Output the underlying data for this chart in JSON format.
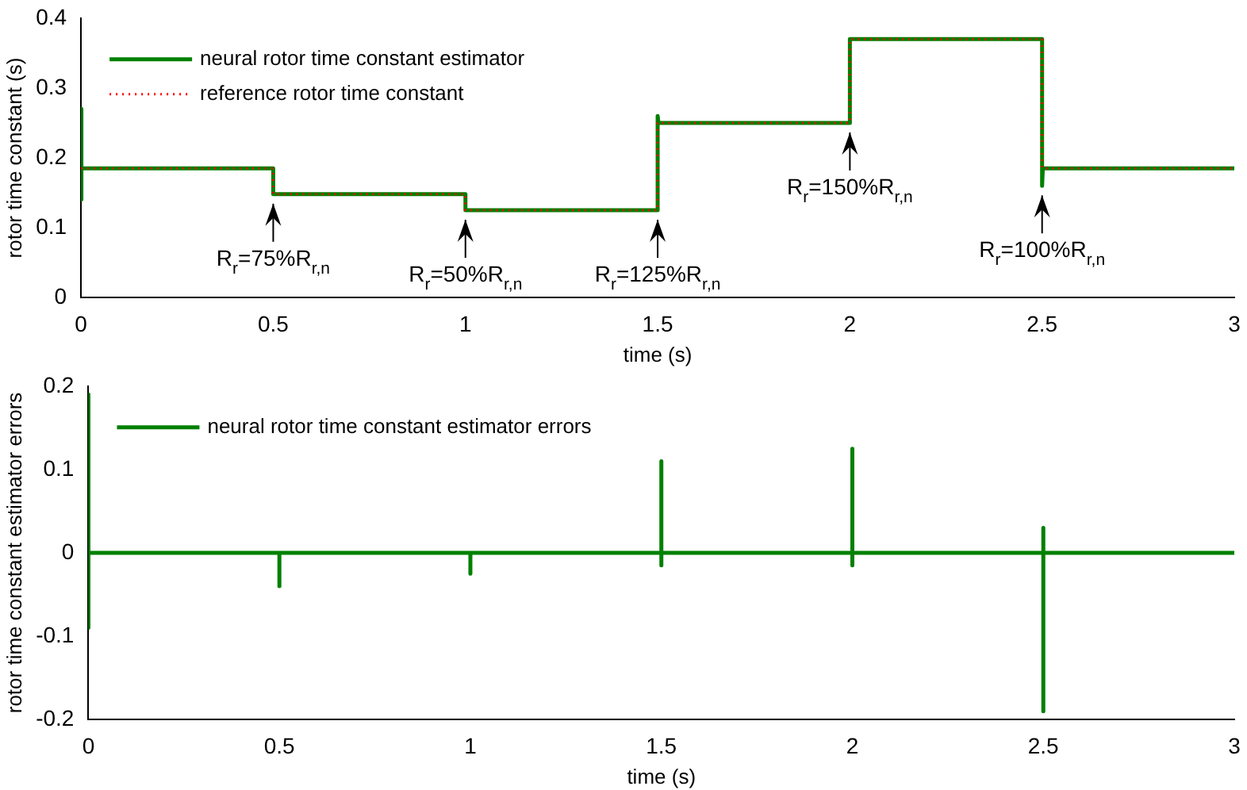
{
  "chart_data": [
    {
      "type": "line",
      "xlabel": "time (s)",
      "ylabel": "rotor time constant (s)",
      "xlim": [
        0,
        3
      ],
      "xticks": [
        0,
        0.5,
        1,
        1.5,
        2,
        2.5,
        3
      ],
      "ylim": [
        0,
        0.4
      ],
      "yticks": [
        0,
        0.1,
        0.2,
        0.3,
        0.4
      ],
      "grid": false,
      "legend": "top left",
      "marker": "none",
      "series": [
        {
          "name": "neural rotor time constant estimator",
          "color": "#008000",
          "line_style": "solid",
          "x": [
            0,
            0,
            0.002,
            0.5,
            0.5,
            1,
            1,
            1.5,
            1.5,
            1.502,
            2,
            2,
            2.5,
            2.5,
            2.502,
            3
          ],
          "values": [
            0.27,
            0.14,
            0.185,
            0.185,
            0.148,
            0.148,
            0.125,
            0.125,
            0.26,
            0.25,
            0.25,
            0.37,
            0.37,
            0.16,
            0.185,
            0.185
          ]
        },
        {
          "name": "reference rotor time constant",
          "color": "#ff0000",
          "line_style": "dotted",
          "x": [
            0,
            0.5,
            0.5,
            1,
            1,
            1.5,
            1.5,
            2,
            2,
            2.5,
            2.5,
            3
          ],
          "values": [
            0.185,
            0.185,
            0.148,
            0.148,
            0.125,
            0.125,
            0.25,
            0.25,
            0.37,
            0.37,
            0.185,
            0.185
          ]
        }
      ],
      "annotations": [
        {
          "text": "R$_{r}$=75%R$_{r,n}$",
          "x": 0.5,
          "y": 0.148
        },
        {
          "text": "R$_{r}$=50%R$_{r,n}$",
          "x": 1,
          "y": 0.125
        },
        {
          "text": "R$_{r}$=125%R$_{r,n}$",
          "x": 1.5,
          "y": 0.125
        },
        {
          "text": "R$_{r}$=150%R$_{r,n}$",
          "x": 2,
          "y": 0.25
        },
        {
          "text": "R$_{r}$=100%R$_{r,n}$",
          "x": 2.5,
          "y": 0.16
        }
      ]
    },
    {
      "type": "line",
      "xlabel": "time (s)",
      "ylabel": "rotor time constant estimator errors",
      "xlim": [
        0,
        3
      ],
      "xticks": [
        0,
        0.5,
        1,
        1.5,
        2,
        2.5,
        3
      ],
      "ylim": [
        -0.2,
        0.2
      ],
      "yticks": [
        -0.2,
        -0.1,
        0,
        0.1,
        0.2
      ],
      "grid": false,
      "legend": "top left",
      "marker": "none",
      "series": [
        {
          "name": "neural rotor time constant estimator errors",
          "color": "#008000",
          "line_style": "solid",
          "x": [
            0,
            0,
            0,
            0.003,
            0.5,
            0.5,
            0.5,
            1,
            1,
            1,
            1.5,
            1.5,
            1.5,
            1.5,
            2,
            2,
            2,
            2,
            2.5,
            2.5,
            2.5,
            2.5,
            3
          ],
          "values": [
            0.19,
            -0.09,
            0,
            0,
            0,
            -0.04,
            0,
            0,
            -0.025,
            0,
            0,
            0.11,
            -0.015,
            0,
            0,
            0.125,
            -0.015,
            0,
            0,
            0.03,
            -0.19,
            0,
            0
          ]
        }
      ]
    }
  ]
}
